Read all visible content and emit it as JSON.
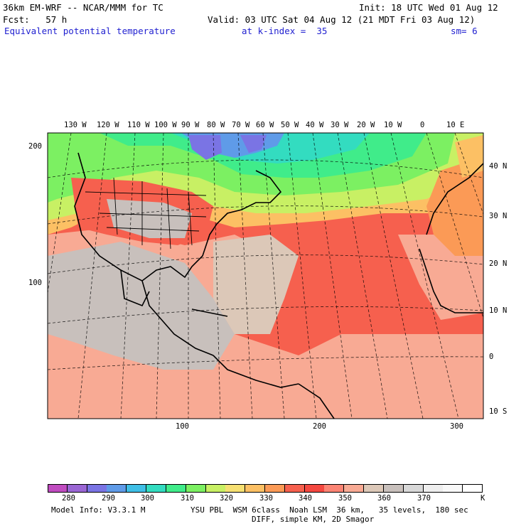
{
  "header": {
    "model": "36km EM-WRF -- NCAR/MMM for TC",
    "init": "Init: 18 UTC Wed 01 Aug 12",
    "fcst": "Fcst:   57 h",
    "valid": "Valid: 03 UTC Sat 04 Aug 12 (21 MDT Fri 03 Aug 12)",
    "field": "Equivalent potential temperature",
    "level": "at k-index =  35",
    "smooth": "sm= 6"
  },
  "map": {
    "lon_labels": [
      "130 W",
      "120 W",
      "110 W",
      "100 W",
      "90 W",
      "80 W",
      "70 W",
      "60 W",
      "50 W",
      "40 W",
      "30 W",
      "20 W",
      "10 W",
      "0",
      "10 E"
    ],
    "lat_labels": [
      "40 N",
      "30 N",
      "20 N",
      "10 N",
      "0",
      "10 S"
    ],
    "grid_y_labels": [
      "200",
      "100"
    ],
    "grid_x_labels": [
      "100",
      "200",
      "300"
    ]
  },
  "colorbar": {
    "colors": [
      "#c04cc0",
      "#9a66d4",
      "#7a74e4",
      "#5f9be8",
      "#3fbfe6",
      "#33dcc0",
      "#40ec8a",
      "#7cf062",
      "#c8f064",
      "#f6e072",
      "#fcc064",
      "#fb9a56",
      "#f6604e",
      "#f44840",
      "#fb8474",
      "#f8aa94",
      "#dcc8b8",
      "#c8c0bc",
      "#d8d8d8",
      "#eeeeee",
      "#f8f8f8",
      "#ffffff"
    ],
    "labels": [
      "280",
      "290",
      "300",
      "310",
      "320",
      "330",
      "340",
      "350",
      "360",
      "370"
    ],
    "unit": "K"
  },
  "footer": {
    "model_info": "Model Info: V3.3.1 M",
    "physics": "YSU PBL  WSM 6class  Noah LSM  36 km,   35 levels,  180 sec",
    "diff": "DIFF, simple KM, 2D Smagor"
  }
}
